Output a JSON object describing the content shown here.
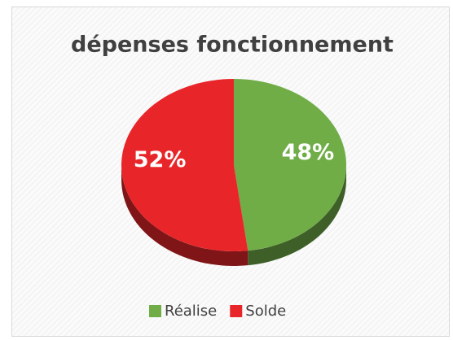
{
  "chart_data": {
    "type": "pie",
    "title": "dépenses fonctionnement",
    "categories": [
      "Réalise",
      "Solde"
    ],
    "values": [
      48,
      52
    ],
    "value_labels": [
      "48%",
      "52%"
    ],
    "colors": [
      "#70ad47",
      "#e8262a"
    ],
    "legend": "bottom"
  }
}
